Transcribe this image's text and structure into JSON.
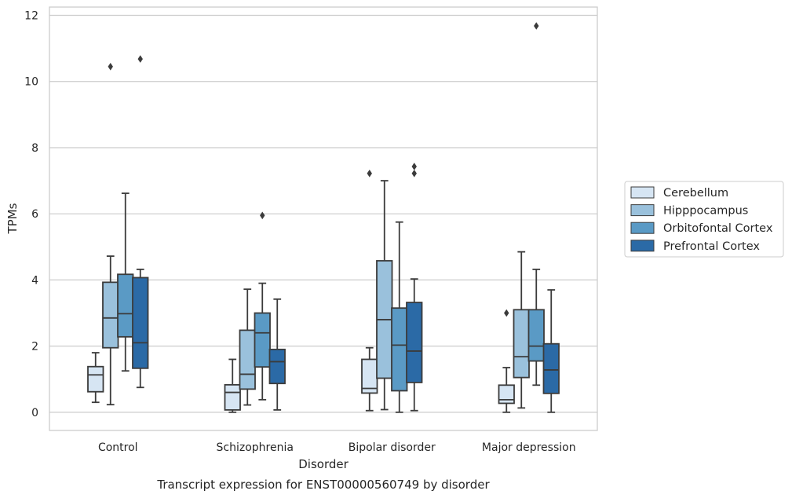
{
  "chart_data": {
    "type": "box",
    "caption": "Transcript expression for ENST00000560749 by disorder",
    "xlabel": "Disorder",
    "ylabel": "TPMs",
    "ylim": [
      -0.55,
      12.25
    ],
    "yticks": [
      "0",
      "2",
      "4",
      "6",
      "8",
      "10",
      "12"
    ],
    "grid": true,
    "legend_position": "right",
    "categories": [
      "Control",
      "Schizophrenia",
      "Bipolar disorder",
      "Major depression"
    ],
    "series": [
      {
        "name": "Cerebellum",
        "color": "#d6e5f3",
        "boxes": [
          {
            "whislo": 0.3,
            "q1": 0.62,
            "med": 1.13,
            "q3": 1.38,
            "whishi": 1.8,
            "fliers": []
          },
          {
            "whislo": 0.0,
            "q1": 0.07,
            "med": 0.6,
            "q3": 0.83,
            "whishi": 1.6,
            "fliers": []
          },
          {
            "whislo": 0.05,
            "q1": 0.58,
            "med": 0.72,
            "q3": 1.6,
            "whishi": 1.95,
            "fliers": [
              7.22
            ]
          },
          {
            "whislo": 0.0,
            "q1": 0.27,
            "med": 0.38,
            "q3": 0.82,
            "whishi": 1.35,
            "fliers": [
              3.0
            ]
          }
        ]
      },
      {
        "name": "Hipppocampus",
        "color": "#9ac1dc",
        "boxes": [
          {
            "whislo": 0.23,
            "q1": 1.95,
            "med": 2.85,
            "q3": 3.93,
            "whishi": 4.72,
            "fliers": [
              10.45
            ]
          },
          {
            "whislo": 0.22,
            "q1": 0.7,
            "med": 1.15,
            "q3": 2.48,
            "whishi": 3.72,
            "fliers": []
          },
          {
            "whislo": 0.08,
            "q1": 1.03,
            "med": 2.8,
            "q3": 4.58,
            "whishi": 7.0,
            "fliers": []
          },
          {
            "whislo": 0.13,
            "q1": 1.05,
            "med": 1.68,
            "q3": 3.1,
            "whishi": 4.85,
            "fliers": []
          }
        ]
      },
      {
        "name": "Orbitofontal Cortex",
        "color": "#5a9ac5",
        "boxes": [
          {
            "whislo": 1.25,
            "q1": 2.28,
            "med": 2.98,
            "q3": 4.17,
            "whishi": 6.62,
            "fliers": []
          },
          {
            "whislo": 0.38,
            "q1": 1.37,
            "med": 2.4,
            "q3": 3.0,
            "whishi": 3.9,
            "fliers": [
              5.95
            ]
          },
          {
            "whislo": 0.0,
            "q1": 0.65,
            "med": 2.03,
            "q3": 3.15,
            "whishi": 5.75,
            "fliers": []
          },
          {
            "whislo": 0.82,
            "q1": 1.55,
            "med": 2.0,
            "q3": 3.1,
            "whishi": 4.32,
            "fliers": [
              11.68
            ]
          }
        ]
      },
      {
        "name": "Prefrontal Cortex",
        "color": "#2b6aa6",
        "boxes": [
          {
            "whislo": 0.75,
            "q1": 1.33,
            "med": 2.1,
            "q3": 4.07,
            "whishi": 4.32,
            "fliers": [
              10.68
            ]
          },
          {
            "whislo": 0.07,
            "q1": 0.87,
            "med": 1.53,
            "q3": 1.9,
            "whishi": 3.42,
            "fliers": []
          },
          {
            "whislo": 0.05,
            "q1": 0.9,
            "med": 1.85,
            "q3": 3.32,
            "whishi": 4.03,
            "fliers": [
              7.22,
              7.43
            ]
          },
          {
            "whislo": 0.0,
            "q1": 0.57,
            "med": 1.28,
            "q3": 2.07,
            "whishi": 3.7,
            "fliers": []
          }
        ]
      }
    ]
  }
}
